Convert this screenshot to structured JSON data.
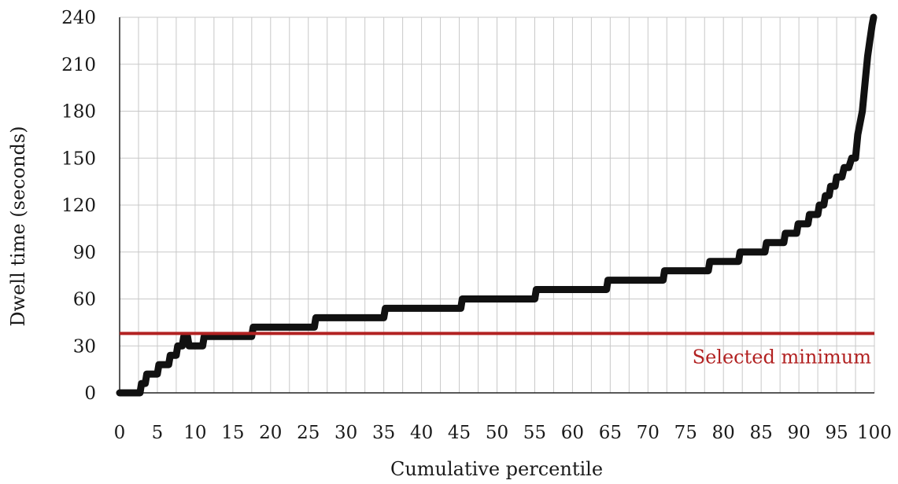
{
  "chart_data": {
    "type": "line",
    "title": "",
    "xlabel": "Cumulative percentile",
    "ylabel": "Dwell time (seconds)",
    "xlim": [
      0,
      100
    ],
    "ylim": [
      0,
      240
    ],
    "xticks": [
      0,
      5,
      10,
      15,
      20,
      25,
      30,
      35,
      40,
      45,
      50,
      55,
      60,
      65,
      70,
      75,
      80,
      85,
      90,
      95,
      100
    ],
    "yticks": [
      0,
      30,
      60,
      90,
      120,
      150,
      180,
      210,
      240
    ],
    "grid": true,
    "grid_x_step": 2.5,
    "series": [
      {
        "color": "#111111",
        "x": [
          0,
          2.7,
          2.9,
          3.4,
          3.6,
          5,
          5.2,
          6.5,
          6.7,
          7.5,
          7.7,
          8.3,
          8.5,
          9,
          9.2,
          11,
          11.2,
          17.5,
          17.7,
          25.8,
          26,
          35,
          35.2,
          45.2,
          45.4,
          55,
          55.2,
          64.5,
          64.7,
          72,
          72.2,
          78,
          78.2,
          82,
          82.2,
          85.5,
          85.7,
          88,
          88.2,
          89.7,
          89.9,
          91.2,
          91.4,
          92.5,
          92.7,
          93.3,
          93.5,
          94,
          94.2,
          94.8,
          95,
          95.7,
          96,
          96.6,
          97,
          97.5,
          97.8,
          98.4,
          98.8,
          99.1,
          99.4,
          99.7,
          99.9
        ],
        "y": [
          0,
          0,
          6,
          6,
          12,
          12,
          18,
          18,
          24,
          24,
          30,
          30,
          36,
          36,
          30,
          30,
          36,
          36,
          42,
          42,
          48,
          48,
          54,
          54,
          60,
          60,
          66,
          66,
          72,
          72,
          78,
          78,
          84,
          84,
          90,
          90,
          96,
          96,
          102,
          102,
          108,
          108,
          114,
          114,
          120,
          120,
          126,
          126,
          132,
          132,
          138,
          138,
          144,
          144,
          150,
          150,
          165,
          180,
          200,
          215,
          225,
          235,
          240
        ]
      }
    ],
    "annotations": [
      {
        "type": "hline",
        "y": 38,
        "color": "#b22222",
        "label": "Selected minimum"
      }
    ]
  }
}
